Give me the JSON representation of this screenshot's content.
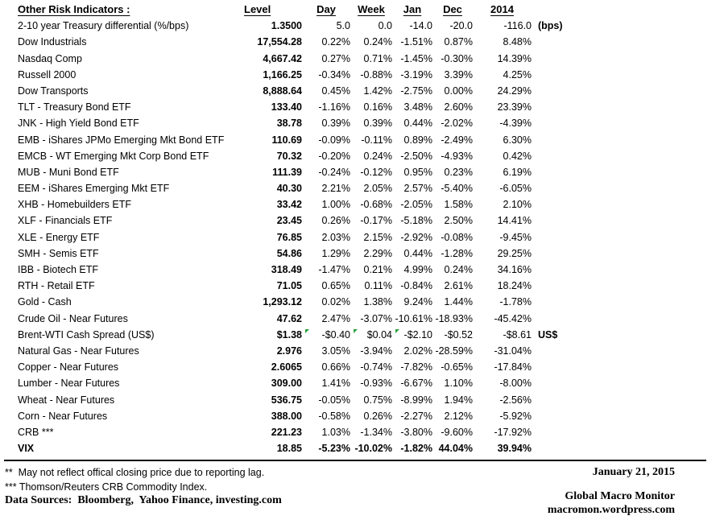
{
  "table": {
    "title": "Other Risk Indicators :",
    "columns": {
      "level": "Level",
      "day": "Day",
      "week": "Week",
      "jan": "Jan",
      "dec": "Dec",
      "y2014": "2014"
    },
    "rows": [
      {
        "label": "2-10 year Treasury differential (%/bps)",
        "level": "1.3500",
        "day": "5.0",
        "week": "0.0",
        "jan": "-14.0",
        "dec": "-20.0",
        "y2014": "-116.0",
        "suffix": "(bps)"
      },
      {
        "label": "Dow Industrials",
        "level": "17,554.28",
        "day": "0.22%",
        "week": "0.24%",
        "jan": "-1.51%",
        "dec": "0.87%",
        "y2014": "8.48%",
        "suffix": ""
      },
      {
        "label": "Nasdaq Comp",
        "level": "4,667.42",
        "day": "0.27%",
        "week": "0.71%",
        "jan": "-1.45%",
        "dec": "-0.30%",
        "y2014": "14.39%",
        "suffix": ""
      },
      {
        "label": "Russell 2000",
        "level": "1,166.25",
        "day": "-0.34%",
        "week": "-0.88%",
        "jan": "-3.19%",
        "dec": "3.39%",
        "y2014": "4.25%",
        "suffix": ""
      },
      {
        "label": "Dow Transports",
        "level": "8,888.64",
        "day": "0.45%",
        "week": "1.42%",
        "jan": "-2.75%",
        "dec": "0.00%",
        "y2014": "24.29%",
        "suffix": ""
      },
      {
        "label": "TLT - Treasury Bond ETF",
        "level": "133.40",
        "day": "-1.16%",
        "week": "0.16%",
        "jan": "3.48%",
        "dec": "2.60%",
        "y2014": "23.39%",
        "suffix": ""
      },
      {
        "label": "JNK - High Yield Bond ETF",
        "level": "38.78",
        "day": "0.39%",
        "week": "0.39%",
        "jan": "0.44%",
        "dec": "-2.02%",
        "y2014": "-4.39%",
        "suffix": ""
      },
      {
        "label": "EMB - iShares JPMo Emerging Mkt Bond ETF",
        "level": "110.69",
        "day": "-0.09%",
        "week": "-0.11%",
        "jan": "0.89%",
        "dec": "-2.49%",
        "y2014": "6.30%",
        "suffix": ""
      },
      {
        "label": "EMCB - WT Emerging Mkt Corp Bond ETF",
        "level": "70.32",
        "day": "-0.20%",
        "week": "0.24%",
        "jan": "-2.50%",
        "dec": "-4.93%",
        "y2014": "0.42%",
        "suffix": ""
      },
      {
        "label": "MUB - Muni Bond ETF",
        "level": "111.39",
        "day": "-0.24%",
        "week": "-0.12%",
        "jan": "0.95%",
        "dec": "0.23%",
        "y2014": "6.19%",
        "suffix": ""
      },
      {
        "label": "EEM - iShares Emerging Mkt ETF",
        "level": "40.30",
        "day": "2.21%",
        "week": "2.05%",
        "jan": "2.57%",
        "dec": "-5.40%",
        "y2014": "-6.05%",
        "suffix": ""
      },
      {
        "label": "XHB - Homebuilders ETF",
        "level": "33.42",
        "day": "1.00%",
        "week": "-0.68%",
        "jan": "-2.05%",
        "dec": "1.58%",
        "y2014": "2.10%",
        "suffix": ""
      },
      {
        "label": "XLF - Financials ETF",
        "level": "23.45",
        "day": "0.26%",
        "week": "-0.17%",
        "jan": "-5.18%",
        "dec": "2.50%",
        "y2014": "14.41%",
        "suffix": ""
      },
      {
        "label": "XLE - Energy ETF",
        "level": "76.85",
        "day": "2.03%",
        "week": "2.15%",
        "jan": "-2.92%",
        "dec": "-0.08%",
        "y2014": "-9.45%",
        "suffix": ""
      },
      {
        "label": "SMH - Semis ETF",
        "level": "54.86",
        "day": "1.29%",
        "week": "2.29%",
        "jan": "0.44%",
        "dec": "-1.28%",
        "y2014": "29.25%",
        "suffix": ""
      },
      {
        "label": "IBB - Biotech ETF",
        "level": "318.49",
        "day": "-1.47%",
        "week": "0.21%",
        "jan": "4.99%",
        "dec": "0.24%",
        "y2014": "34.16%",
        "suffix": ""
      },
      {
        "label": "RTH - Retail ETF",
        "level": "71.05",
        "day": "0.65%",
        "week": "0.11%",
        "jan": "-0.84%",
        "dec": "2.61%",
        "y2014": "18.24%",
        "suffix": ""
      },
      {
        "label": "Gold - Cash",
        "level": "1,293.12",
        "day": "0.02%",
        "week": "1.38%",
        "jan": "9.24%",
        "dec": "1.44%",
        "y2014": "-1.78%",
        "suffix": ""
      },
      {
        "label": "Crude Oil - Near Futures",
        "level": "47.62",
        "day": "2.47%",
        "week": "-3.07%",
        "jan": "-10.61%",
        "dec": "-18.93%",
        "y2014": "-45.42%",
        "suffix": ""
      },
      {
        "label": "Brent-WTI Cash Spread (US$)",
        "level": "$1.38",
        "day": "-$0.40",
        "week": "$0.04",
        "jan": "-$2.10",
        "dec": "-$0.52",
        "y2014": "-$8.61",
        "suffix": "US$",
        "flags": [
          "day",
          "week",
          "jan"
        ]
      },
      {
        "label": "Natural Gas - Near Futures",
        "level": "2.976",
        "day": "3.05%",
        "week": "-3.94%",
        "jan": "2.02%",
        "dec": "-28.59%",
        "y2014": "-31.04%",
        "suffix": ""
      },
      {
        "label": "Copper - Near Futures",
        "level": "2.6065",
        "day": "0.66%",
        "week": "-0.74%",
        "jan": "-7.82%",
        "dec": "-0.65%",
        "y2014": "-17.84%",
        "suffix": ""
      },
      {
        "label": "Lumber - Near Futures",
        "level": "309.00",
        "day": "1.41%",
        "week": "-0.93%",
        "jan": "-6.67%",
        "dec": "1.10%",
        "y2014": "-8.00%",
        "suffix": ""
      },
      {
        "label": "Wheat - Near Futures",
        "level": "536.75",
        "day": "-0.05%",
        "week": "0.75%",
        "jan": "-8.99%",
        "dec": "1.94%",
        "y2014": "-2.56%",
        "suffix": ""
      },
      {
        "label": "Corn - Near Futures",
        "level": "388.00",
        "day": "-0.58%",
        "week": "0.26%",
        "jan": "-2.27%",
        "dec": "2.12%",
        "y2014": "-5.92%",
        "suffix": ""
      },
      {
        "label": "CRB ***",
        "level": "221.23",
        "day": "1.03%",
        "week": "-1.34%",
        "jan": "-3.80%",
        "dec": "-9.60%",
        "y2014": "-17.92%",
        "suffix": ""
      },
      {
        "label": "VIX",
        "level": "18.85",
        "day": "-5.23%",
        "week": "-10.02%",
        "jan": "-1.82%",
        "dec": "44.04%",
        "y2014": "39.94%",
        "suffix": "",
        "bold": true
      }
    ]
  },
  "footer": {
    "note_reporting_lag": "**  May not reflect offical closing price due to reporting lag.",
    "note_crb": "*** Thomson/Reuters CRB Commodity Index.",
    "data_sources": "Data Sources:  Bloomberg,  Yahoo Finance, investing.com",
    "date": "January 21, 2015",
    "site_name": "Global Macro Monitor",
    "site_url": "macromon.wordpress.com"
  },
  "colors": {
    "flag_green": "#2f9e3d",
    "text": "#000000",
    "background": "#ffffff"
  }
}
